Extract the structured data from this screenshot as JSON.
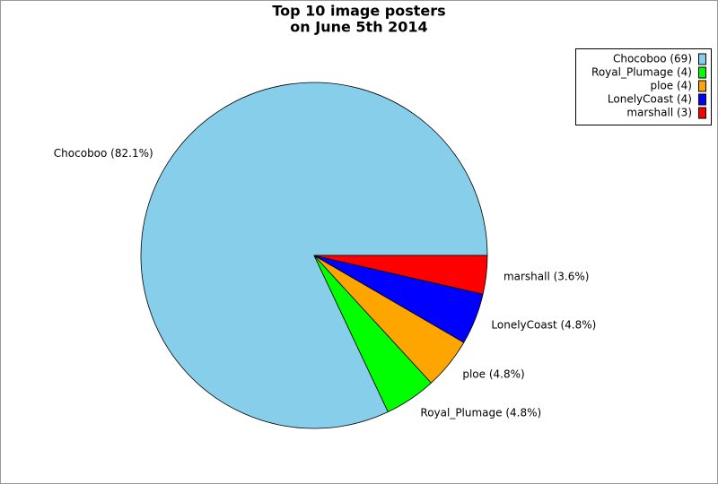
{
  "chart_data": {
    "type": "pie",
    "title": [
      "Top 10 image posters",
      "on June 5th 2014"
    ],
    "categories": [
      "Chocoboo (69)",
      "Royal_Plumage (4)",
      "ploe (4)",
      "LonelyCoast (4)",
      "marshall (3)"
    ],
    "values": [
      82.1,
      4.8,
      4.8,
      4.8,
      3.6
    ],
    "value_labels": [
      "Chocoboo (82.1%)",
      "Royal_Plumage (4.8%)",
      "ploe (4.8%)",
      "LonelyCoast (4.8%)",
      "marshall (3.6%)"
    ],
    "colors": [
      "#87ceeb",
      "#00ff00",
      "#ffa500",
      "#0000ff",
      "#ff0000"
    ],
    "legend": "upper right"
  }
}
